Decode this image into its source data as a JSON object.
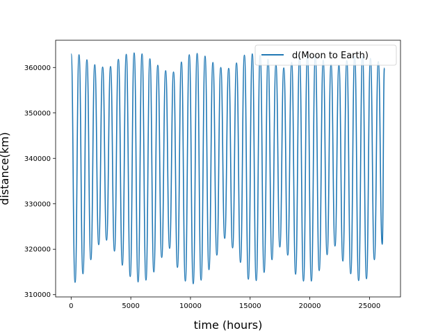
{
  "chart_data": {
    "type": "line",
    "xlabel": "time (hours)",
    "ylabel": "distance(km)",
    "xlim": [
      -1300,
      27600
    ],
    "ylim": [
      309500,
      366000
    ],
    "x_ticks": [
      0,
      5000,
      10000,
      15000,
      20000,
      25000
    ],
    "x_tick_labels": [
      "0",
      "5000",
      "10000",
      "15000",
      "20000",
      "25000"
    ],
    "y_ticks": [
      310000,
      320000,
      330000,
      340000,
      350000,
      360000
    ],
    "y_tick_labels": [
      "310000",
      "320000",
      "330000",
      "340000",
      "350000",
      "360000"
    ],
    "legend_position": "top-right",
    "grid": false,
    "series": [
      {
        "name": "d(Moon to Earth)",
        "color": "#1f77b4",
        "x": [
          0,
          330,
          660,
          990,
          1320,
          1650,
          1980,
          2310,
          2640,
          2970,
          3300,
          3630,
          3960,
          4290,
          4620,
          4950,
          5280,
          5610,
          5940,
          6270,
          6600,
          6930,
          7260,
          7590,
          7920,
          8250,
          8580,
          8910,
          9240,
          9570,
          9900,
          10230,
          10560,
          10890,
          11220,
          11550,
          11880,
          12210,
          12540,
          12870,
          13200,
          13530,
          13860,
          14190,
          14520,
          14850,
          15180,
          15510,
          15840,
          16170,
          16500,
          16830,
          17160,
          17490,
          17820,
          18150,
          18480,
          18810,
          19140,
          19470,
          19800,
          20130,
          20460,
          20790,
          21120,
          21450,
          21780,
          22110,
          22440,
          22770,
          23100,
          23430,
          23760,
          24090,
          24420,
          24750,
          25080,
          25410,
          25740,
          26070,
          26250
        ],
        "y": [
          363000,
          312700,
          362800,
          314600,
          361700,
          317700,
          360600,
          321000,
          360100,
          322000,
          360200,
          319600,
          361800,
          316500,
          362900,
          314000,
          363200,
          312800,
          363000,
          313200,
          361900,
          315000,
          360500,
          318200,
          359300,
          320200,
          359000,
          316000,
          361200,
          313000,
          362800,
          312400,
          363100,
          313200,
          362500,
          315500,
          361100,
          318700,
          360000,
          322400,
          359800,
          320300,
          361000,
          317100,
          362700,
          313400,
          363000,
          313100,
          362700,
          314900,
          361800,
          317700,
          360600,
          320500,
          359900,
          318700,
          361100,
          314500,
          362300,
          313000,
          362700,
          313000,
          362500,
          315300,
          361600,
          318800,
          360700,
          320700,
          360500,
          317400,
          361500,
          314600,
          362500,
          313100,
          362500,
          313500,
          362000,
          317700,
          361300,
          321100,
          359900
        ]
      }
    ]
  }
}
